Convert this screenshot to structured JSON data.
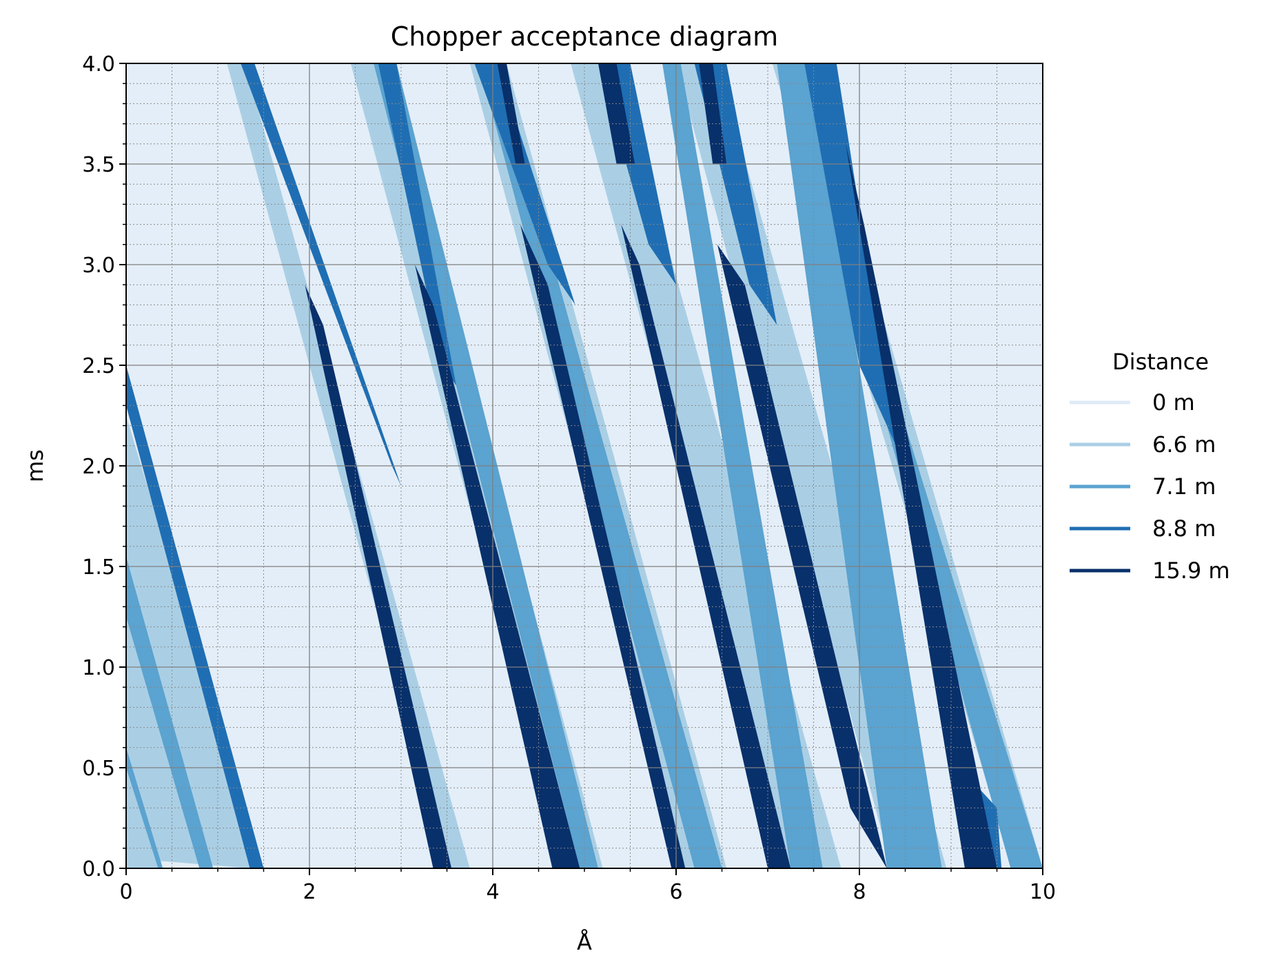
{
  "chart_data": {
    "type": "area",
    "title": "Chopper acceptance diagram",
    "xlabel": "Å",
    "ylabel": "ms",
    "xlim": [
      0,
      10
    ],
    "ylim": [
      0,
      4
    ],
    "x_ticks": [
      "0",
      "2",
      "4",
      "6",
      "8",
      "10"
    ],
    "y_ticks": [
      "0.0",
      "0.5",
      "1.0",
      "1.5",
      "2.0",
      "2.5",
      "3.0",
      "3.5",
      "4.0"
    ],
    "grid": "major solid, minor dotted",
    "legend": {
      "title": "Distance",
      "placement": "right",
      "entries": [
        {
          "name": "0 m",
          "color": "#deebf7"
        },
        {
          "name": "6.6 m",
          "color": "#aacfe5"
        },
        {
          "name": "7.1 m",
          "color": "#5ba3d0"
        },
        {
          "name": "8.8 m",
          "color": "#1f6eb3"
        },
        {
          "name": "15.9 m",
          "color": "#08306b"
        }
      ]
    },
    "background_color": "#e4eef8",
    "series": [
      {
        "name": "6.6 m",
        "color": "#aacfe5",
        "regions": [
          [
            [
              0,
              2.25
            ],
            [
              0,
              0.05
            ],
            [
              1.35,
              0
            ],
            [
              1.45,
              0.05
            ]
          ],
          [
            [
              0,
              0.65
            ],
            [
              0.4,
              0
            ],
            [
              0,
              0
            ]
          ],
          [
            [
              1.1,
              4
            ],
            [
              1.3,
              4
            ],
            [
              3.75,
              0
            ],
            [
              3.5,
              0
            ]
          ],
          [
            [
              2.45,
              4
            ],
            [
              2.85,
              4
            ],
            [
              5.2,
              0
            ],
            [
              4.8,
              0
            ]
          ],
          [
            [
              3.75,
              4
            ],
            [
              4.15,
              4
            ],
            [
              6.55,
              0
            ],
            [
              6.1,
              0
            ]
          ],
          [
            [
              4.85,
              4
            ],
            [
              5.35,
              4
            ],
            [
              7.8,
              0
            ],
            [
              7.25,
              0
            ]
          ],
          [
            [
              6.0,
              4
            ],
            [
              6.45,
              4
            ],
            [
              8.95,
              0
            ],
            [
              8.35,
              0
            ]
          ],
          [
            [
              7.05,
              4
            ],
            [
              7.45,
              4
            ],
            [
              10.0,
              0
            ],
            [
              9.6,
              0.1
            ]
          ]
        ]
      },
      {
        "name": "7.1 m",
        "color": "#5ba3d0",
        "regions": [
          [
            [
              0,
              1.55
            ],
            [
              0,
              1.25
            ],
            [
              0.8,
              0
            ],
            [
              0.95,
              0
            ]
          ],
          [
            [
              0,
              0.6
            ],
            [
              0,
              0.5
            ],
            [
              0.35,
              0
            ],
            [
              0.4,
              0
            ]
          ],
          [
            [
              2.7,
              4
            ],
            [
              2.95,
              4
            ],
            [
              5.15,
              0
            ],
            [
              4.95,
              0
            ]
          ],
          [
            [
              3.85,
              4
            ],
            [
              4.05,
              4
            ],
            [
              6.5,
              0
            ],
            [
              6.2,
              0
            ]
          ],
          [
            [
              5.85,
              4
            ],
            [
              6.05,
              4
            ],
            [
              7.6,
              0
            ],
            [
              7.25,
              0
            ]
          ],
          [
            [
              7.1,
              4
            ],
            [
              7.45,
              4
            ],
            [
              8.9,
              0
            ],
            [
              8.3,
              0
            ]
          ],
          [
            [
              8.3,
              2.2
            ],
            [
              8.5,
              2.2
            ],
            [
              10.0,
              0
            ],
            [
              9.65,
              0
            ]
          ]
        ]
      },
      {
        "name": "8.8 m",
        "color": "#1f6eb3",
        "regions": [
          [
            [
              0,
              2.5
            ],
            [
              0,
              2.3
            ],
            [
              1.35,
              0
            ],
            [
              1.5,
              0
            ]
          ],
          [
            [
              1.25,
              4
            ],
            [
              1.4,
              4
            ],
            [
              3.0,
              1.9
            ],
            [
              2.9,
              2.0
            ]
          ],
          [
            [
              2.75,
              4
            ],
            [
              2.95,
              4
            ],
            [
              3.6,
              2.4
            ],
            [
              3.45,
              2.5
            ]
          ],
          [
            [
              3.8,
              4
            ],
            [
              4.05,
              4
            ],
            [
              4.9,
              2.8
            ],
            [
              4.6,
              3.0
            ]
          ],
          [
            [
              5.15,
              4
            ],
            [
              5.5,
              4
            ],
            [
              6.0,
              2.9
            ],
            [
              5.7,
              3.1
            ]
          ],
          [
            [
              6.2,
              4
            ],
            [
              6.55,
              4
            ],
            [
              7.1,
              2.7
            ],
            [
              6.8,
              2.9
            ]
          ],
          [
            [
              7.4,
              4
            ],
            [
              7.75,
              4
            ],
            [
              8.4,
              2.1
            ],
            [
              8.0,
              2.5
            ]
          ],
          [
            [
              9.3,
              0.4
            ],
            [
              9.5,
              0.3
            ],
            [
              9.55,
              0
            ],
            [
              9.45,
              0
            ]
          ]
        ]
      },
      {
        "name": "15.9 m",
        "color": "#08306b",
        "regions": [
          [
            [
              1.95,
              2.9
            ],
            [
              2.15,
              2.7
            ],
            [
              3.55,
              0
            ],
            [
              3.35,
              0
            ]
          ],
          [
            [
              3.15,
              3.0
            ],
            [
              3.35,
              2.8
            ],
            [
              4.95,
              0
            ],
            [
              4.65,
              0
            ]
          ],
          [
            [
              4.3,
              3.2
            ],
            [
              4.6,
              2.9
            ],
            [
              6.1,
              0
            ],
            [
              5.95,
              0
            ]
          ],
          [
            [
              5.4,
              3.2
            ],
            [
              5.6,
              3.0
            ],
            [
              7.25,
              0
            ],
            [
              7.0,
              0
            ]
          ],
          [
            [
              6.45,
              3.1
            ],
            [
              6.75,
              2.9
            ],
            [
              8.3,
              0
            ],
            [
              7.9,
              0.3
            ]
          ],
          [
            [
              7.85,
              3.6
            ],
            [
              8.05,
              3.2
            ],
            [
              9.5,
              0
            ],
            [
              9.15,
              0
            ]
          ],
          [
            [
              4.05,
              4
            ],
            [
              4.15,
              4
            ],
            [
              4.35,
              3.5
            ],
            [
              4.25,
              3.5
            ]
          ],
          [
            [
              5.15,
              4
            ],
            [
              5.35,
              4
            ],
            [
              5.55,
              3.5
            ],
            [
              5.35,
              3.5
            ]
          ],
          [
            [
              6.25,
              4
            ],
            [
              6.4,
              4
            ],
            [
              6.55,
              3.5
            ],
            [
              6.4,
              3.5
            ]
          ]
        ]
      }
    ]
  }
}
